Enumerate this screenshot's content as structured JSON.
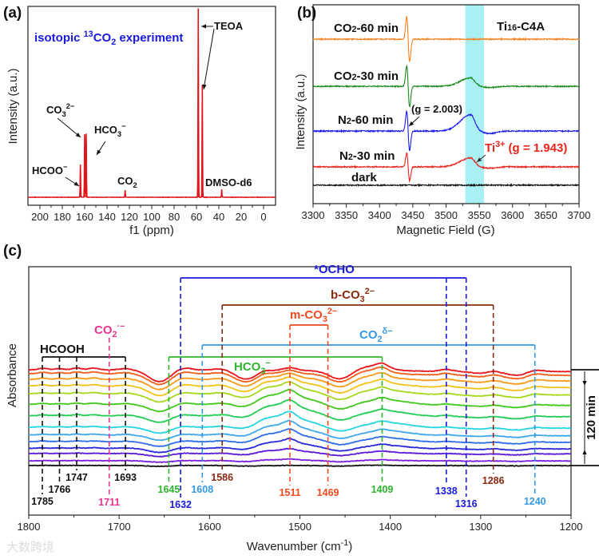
{
  "watermark": "大数跨境",
  "chart_data": [
    {
      "panel": "(a)",
      "type": "line",
      "xlabel": "f1 (ppm)",
      "ylabel": "Intensity (a.u.)",
      "xlim": [
        210.7,
        -10.7
      ],
      "ylim": [
        0,
        1
      ],
      "xticks": [
        200,
        180,
        160,
        140,
        120,
        100,
        80,
        60,
        40,
        20,
        0
      ],
      "color": "#e0161b",
      "baseline": 0.04,
      "peaks": [
        {
          "x": 163.8,
          "y": 0.205
        },
        {
          "x": 160.0,
          "y": 0.357
        },
        {
          "x": 158.6,
          "y": 0.36
        },
        {
          "x": 123.8,
          "y": 0.076
        },
        {
          "x": 58.4,
          "y": 0.99
        },
        {
          "x": 54.8,
          "y": 0.606
        },
        {
          "x": 37.4,
          "y": 0.08
        }
      ],
      "annotations": {
        "isotopic": {
          "color": "#1a1adb",
          "segs": [
            {
              "t": "isotopic "
            },
            {
              "t": "13",
              "s": "sup"
            },
            {
              "t": "CO"
            },
            {
              "t": "2",
              "s": "sub"
            },
            {
              "t": " experiment"
            }
          ]
        },
        "teoa": {
          "color": "#111111",
          "segs": [
            {
              "t": "TEOA"
            }
          ]
        },
        "co3": {
          "color": "#111111",
          "segs": [
            {
              "t": "CO"
            },
            {
              "t": "3",
              "s": "sub"
            },
            {
              "t": "2−",
              "s": "sup"
            }
          ]
        },
        "hco3": {
          "color": "#111111",
          "segs": [
            {
              "t": "HCO"
            },
            {
              "t": "3",
              "s": "sub"
            },
            {
              "t": "−",
              "s": "sup"
            }
          ]
        },
        "hcoo": {
          "color": "#111111",
          "segs": [
            {
              "t": "HCOO"
            },
            {
              "t": "−",
              "s": "sup"
            }
          ]
        },
        "co2": {
          "color": "#111111",
          "segs": [
            {
              "t": "CO"
            },
            {
              "t": "2",
              "s": "sub"
            }
          ]
        },
        "dmso": {
          "color": "#111111",
          "segs": [
            {
              "t": "DMSO-d6"
            }
          ]
        }
      }
    },
    {
      "panel": "(b)",
      "type": "line",
      "xlabel": "Magnetic Field (G)",
      "ylabel": "Intensity (a.u.)",
      "xlim": [
        3300,
        3700
      ],
      "ylim": [
        0,
        10
      ],
      "xticks": [
        3300,
        3350,
        3400,
        3450,
        3500,
        3550,
        3600,
        3650,
        3700
      ],
      "highlight_band": [
        3529,
        3557
      ],
      "highlight_color": "#a8f0f4",
      "title_segs": [
        {
          "t": "Ti"
        },
        {
          "t": "16",
          "s": "small"
        },
        {
          "t": "-C4A"
        }
      ],
      "g_radical_segs": [
        {
          "t": "(g = 2.003)"
        }
      ],
      "ti3_segs": [
        {
          "t": "Ti"
        },
        {
          "t": "3+",
          "s": "sup"
        },
        {
          "t": " (g = 1.943)"
        }
      ],
      "radical_center": 3443,
      "ti3_center": 3537,
      "series": [
        {
          "id": "co2-60",
          "segs": [
            {
              "t": "CO"
            },
            {
              "t": "2",
              "s": "small"
            },
            {
              "t": "-60 min"
            }
          ],
          "color": "#f5821f",
          "baseline": 8.27,
          "radical_amp": 1.13,
          "ti3_amp": 0.0
        },
        {
          "id": "co2-30",
          "segs": [
            {
              "t": "CO"
            },
            {
              "t": "2",
              "s": "small"
            },
            {
              "t": "-30 min"
            }
          ],
          "color": "#1e8a1e",
          "baseline": 5.9,
          "radical_amp": 1.03,
          "ti3_amp": 0.42
        },
        {
          "id": "n2-60",
          "segs": [
            {
              "t": "N"
            },
            {
              "t": "2",
              "s": "small"
            },
            {
              "t": "-60 min"
            }
          ],
          "color": "#1a1aeb",
          "baseline": 3.65,
          "radical_amp": 1.0,
          "ti3_amp": 0.82
        },
        {
          "id": "n2-30",
          "segs": [
            {
              "t": "N"
            },
            {
              "t": "2",
              "s": "small"
            },
            {
              "t": "-30 min"
            }
          ],
          "color": "#e8241c",
          "baseline": 1.85,
          "radical_amp": 0.7,
          "ti3_amp": 0.45
        },
        {
          "id": "dark",
          "segs": [
            {
              "t": "dark"
            }
          ],
          "color": "#111111",
          "baseline": 0.93,
          "radical_amp": 0.0,
          "ti3_amp": 0.0
        }
      ]
    },
    {
      "panel": "(c)",
      "type": "line",
      "xlabel_segs": [
        {
          "t": "Wavenumber (cm"
        },
        {
          "t": "-1",
          "s": "sup"
        },
        {
          "t": ")"
        }
      ],
      "ylabel": "Absorbance",
      "xlim": [
        1800,
        1200
      ],
      "ylim": [
        -0.517,
        2.075
      ],
      "xticks": [
        1800,
        1700,
        1600,
        1500,
        1400,
        1300,
        1200
      ],
      "time_label": "120 min",
      "features_common": [
        {
          "center": 1784,
          "width": 5,
          "amp": 0.015
        },
        {
          "center": 1766,
          "width": 5,
          "amp": 0.012
        },
        {
          "center": 1747,
          "width": 5,
          "amp": 0.02
        },
        {
          "center": 1728,
          "width": 6,
          "amp": 0.02
        },
        {
          "center": 1693,
          "width": 7,
          "amp": 0.015
        },
        {
          "center": 1655,
          "width": 12,
          "amp": -0.12
        },
        {
          "center": 1630,
          "width": 10,
          "amp": 0.03
        },
        {
          "center": 1586,
          "width": 10,
          "amp": 0.02
        },
        {
          "center": 1560,
          "width": 12,
          "amp": -0.09
        },
        {
          "center": 1540,
          "width": 6,
          "amp": 0.015
        },
        {
          "center": 1511,
          "width": 8,
          "amp": 0.03
        },
        {
          "center": 1455,
          "width": 12,
          "amp": -0.09
        },
        {
          "center": 1420,
          "width": 18,
          "amp": 0.05
        },
        {
          "center": 1409,
          "width": 6,
          "amp": 0.04
        },
        {
          "center": 1338,
          "width": 6,
          "amp": 0.02
        },
        {
          "center": 1300,
          "width": 12,
          "amp": -0.02
        },
        {
          "center": 1286,
          "width": 6,
          "amp": 0.015
        },
        {
          "center": 1260,
          "width": 12,
          "amp": -0.04
        },
        {
          "center": 1240,
          "width": 8,
          "amp": 0.02
        }
      ],
      "features_hump": [
        {
          "center": 1520,
          "width": 28,
          "amp": 0.12
        },
        {
          "center": 1511,
          "width": 6,
          "amp": 0.04
        },
        {
          "center": 1395,
          "width": 20,
          "amp": 0.04
        }
      ],
      "series": [
        {
          "color": "#111111",
          "offset": 0.0,
          "k": 0.06,
          "h": 0.0
        },
        {
          "color": "#7a1fe0",
          "offset": 0.05,
          "k": 0.12,
          "h": 0.1
        },
        {
          "color": "#5a1ad8",
          "offset": 0.125,
          "k": 0.25,
          "h": 0.3
        },
        {
          "color": "#2a2ad8",
          "offset": 0.18,
          "k": 0.35,
          "h": 0.6
        },
        {
          "color": "#2f6ee8",
          "offset": 0.25,
          "k": 0.4,
          "h": 0.8
        },
        {
          "color": "#3fa8ea",
          "offset": 0.32,
          "k": 0.45,
          "h": 0.9
        },
        {
          "color": "#28d4e0",
          "offset": 0.4,
          "k": 0.5,
          "h": 1.0
        },
        {
          "color": "#22cc55",
          "offset": 0.52,
          "k": 0.55,
          "h": 1.0
        },
        {
          "color": "#44c81e",
          "offset": 0.64,
          "k": 0.6,
          "h": 0.9
        },
        {
          "color": "#a6d81e",
          "offset": 0.75,
          "k": 0.7,
          "h": 0.7
        },
        {
          "color": "#f2c21a",
          "offset": 0.83,
          "k": 0.8,
          "h": 0.5
        },
        {
          "color": "#f59a1a",
          "offset": 0.9,
          "k": 0.85,
          "h": 0.3
        },
        {
          "color": "#f0601a",
          "offset": 0.96,
          "k": 0.92,
          "h": 0.1
        },
        {
          "color": "#e8141c",
          "offset": 1.0,
          "k": 1.0,
          "h": 0.0
        }
      ],
      "assignments": [
        {
          "id": "hcooh",
          "segs": [
            {
              "t": "HCOOH"
            }
          ],
          "color": "#111111",
          "peaks": [
            1785,
            1766,
            1747,
            1693
          ]
        },
        {
          "id": "co2-radical",
          "segs": [
            {
              "t": "CO"
            },
            {
              "t": "2",
              "s": "sub"
            },
            {
              "t": "·−",
              "s": "sup"
            }
          ],
          "color": "#e8338f",
          "peaks": [
            1711
          ]
        },
        {
          "id": "hco3",
          "segs": [
            {
              "t": "HCO"
            },
            {
              "t": "3",
              "s": "sub"
            },
            {
              "t": "−",
              "s": "sup"
            }
          ],
          "color": "#2db52d",
          "peaks": [
            1645,
            1409
          ]
        },
        {
          "id": "co2-delta",
          "segs": [
            {
              "t": "CO"
            },
            {
              "t": "2",
              "s": "sub"
            },
            {
              "t": "δ−",
              "s": "sup"
            }
          ],
          "color": "#3399e6",
          "peaks": [
            1608,
            1240
          ]
        },
        {
          "id": "m-co3",
          "segs": [
            {
              "t": "m-CO"
            },
            {
              "t": "3",
              "s": "sub"
            },
            {
              "t": "2−",
              "s": "sup"
            }
          ],
          "color": "#f04a1e",
          "peaks": [
            1511,
            1469
          ]
        },
        {
          "id": "b-co3",
          "segs": [
            {
              "t": "b-CO"
            },
            {
              "t": "3",
              "s": "sub"
            },
            {
              "t": "2−",
              "s": "sup"
            }
          ],
          "color": "#8b2a10",
          "peaks": [
            1586,
            1286
          ]
        },
        {
          "id": "ocho",
          "segs": [
            {
              "t": "*OCHO"
            }
          ],
          "color": "#1a1adb",
          "peaks": [
            1632,
            1338,
            1316
          ]
        }
      ]
    }
  ]
}
